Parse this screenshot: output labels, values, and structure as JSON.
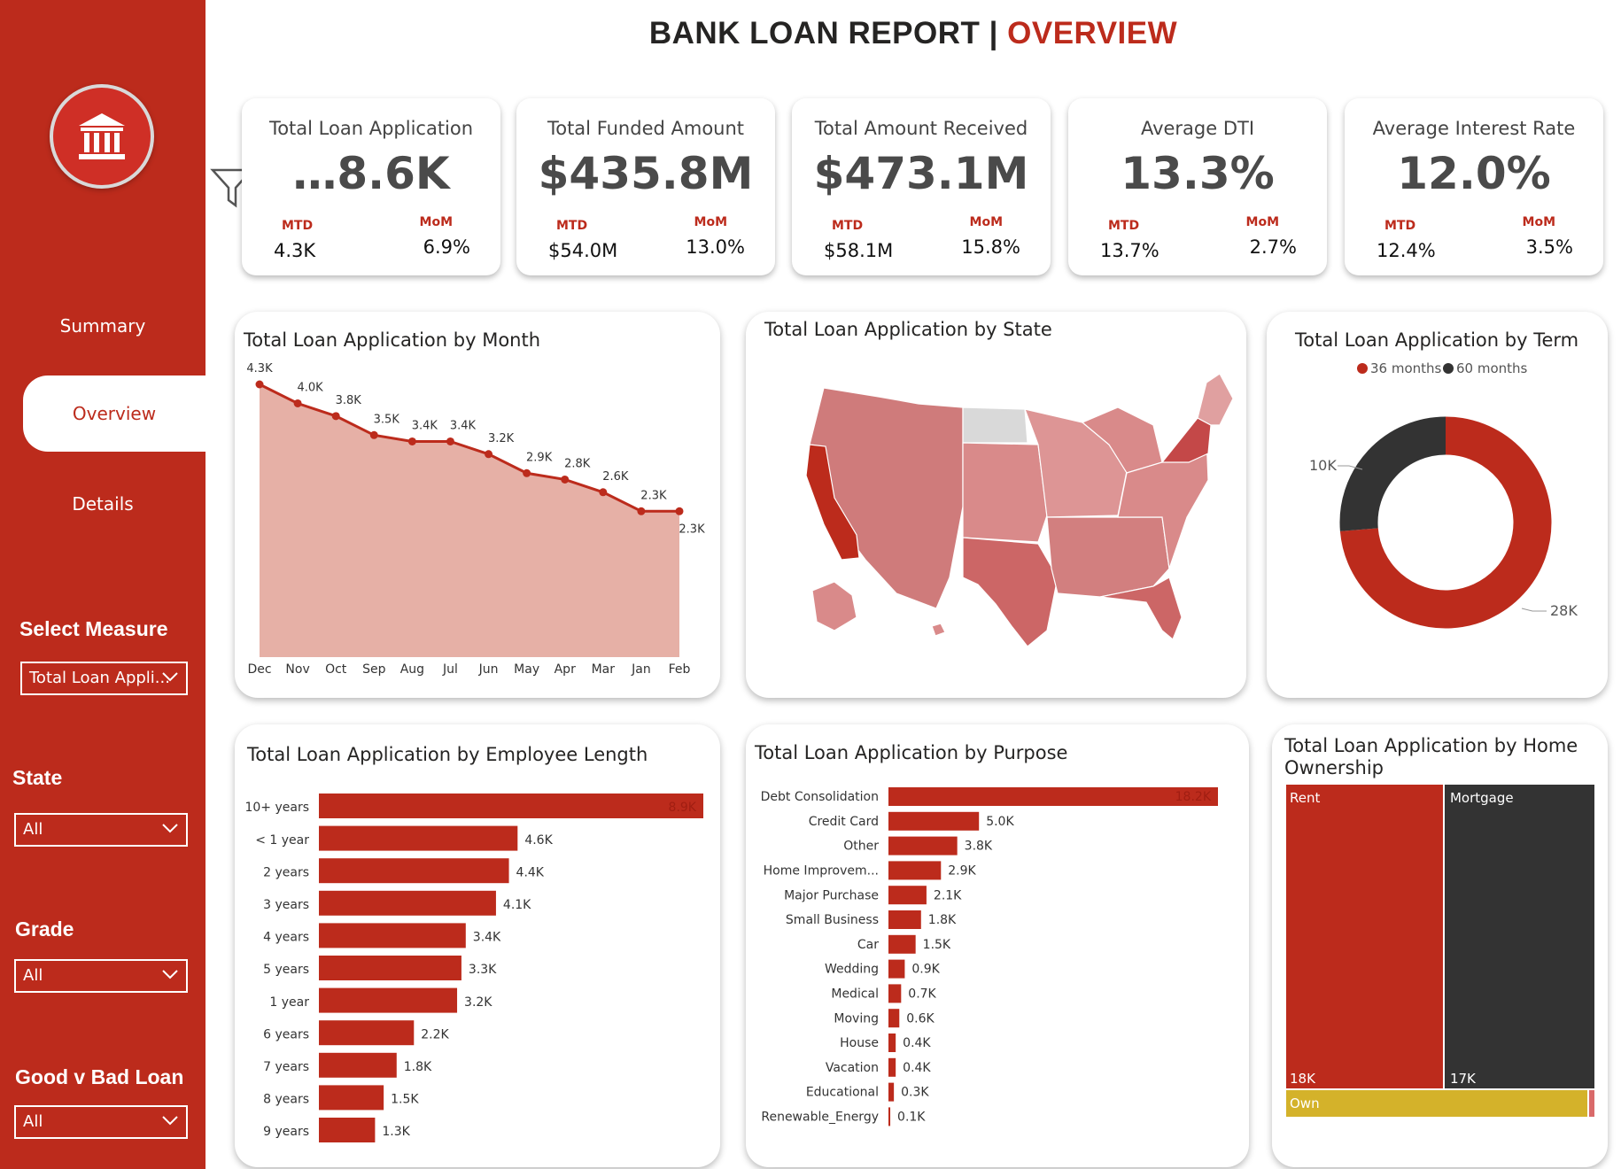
{
  "report": {
    "title_main": "BANK LOAN REPORT |",
    "title_accent": "OVERVIEW"
  },
  "nav": [
    {
      "label": "Summary"
    },
    {
      "label": "Overview"
    },
    {
      "label": "Details"
    }
  ],
  "filters": {
    "measure": {
      "label": "Select Measure",
      "value": "Total Loan Appli..."
    },
    "state": {
      "label": "State",
      "value": "All"
    },
    "grade": {
      "label": "Grade",
      "value": "All"
    },
    "loan": {
      "label": "Good v Bad Loan",
      "value": "All"
    }
  },
  "kpis": [
    {
      "title": "Total Loan Application",
      "value": "…8.6K",
      "mtd_label": "MTD",
      "mtd": "4.3K",
      "mom_label": "MoM",
      "mom": "6.9%"
    },
    {
      "title": "Total Funded Amount",
      "value": "$435.8M",
      "mtd_label": "MTD",
      "mtd": "$54.0M",
      "mom_label": "MoM",
      "mom": "13.0%"
    },
    {
      "title": "Total Amount Received",
      "value": "$473.1M",
      "mtd_label": "MTD",
      "mtd": "$58.1M",
      "mom_label": "MoM",
      "mom": "15.8%"
    },
    {
      "title": "Average DTI",
      "value": "13.3%",
      "mtd_label": "MTD",
      "mtd": "13.7%",
      "mom_label": "MoM",
      "mom": "2.7%"
    },
    {
      "title": "Average Interest Rate",
      "value": "12.0%",
      "mtd_label": "MTD",
      "mtd": "12.4%",
      "mom_label": "MoM",
      "mom": "3.5%"
    }
  ],
  "panels": {
    "month": "Total Loan Application by Month",
    "state": "Total Loan Application by State",
    "term": "Total Loan Application by Term",
    "emp": "Total Loan Application by Employee Length",
    "purpose": "Total Loan Application by Purpose",
    "home": "Total Loan Application by Home Ownership"
  },
  "colors": {
    "accent": "#bc2b1c",
    "dark": "#333333",
    "area": "#e6b0a6",
    "own": "#d4b22a",
    "map": "#d98a8a"
  },
  "chart_data": [
    {
      "type": "area",
      "title": "Total Loan Application by Month",
      "categories": [
        "Dec",
        "Nov",
        "Oct",
        "Sep",
        "Aug",
        "Jul",
        "Jun",
        "May",
        "Apr",
        "Mar",
        "Jan",
        "Feb"
      ],
      "values": [
        4.3,
        4.0,
        3.8,
        3.5,
        3.4,
        3.4,
        3.2,
        2.9,
        2.8,
        2.6,
        2.3,
        2.3
      ],
      "labels": [
        "4.3K",
        "4.0K",
        "3.8K",
        "3.5K",
        "3.4K",
        "3.4K",
        "3.2K",
        "2.9K",
        "2.8K",
        "2.6K",
        "2.3K",
        "2.3K"
      ]
    },
    {
      "type": "pie",
      "title": "Total Loan Application by Term",
      "legend": [
        "36 months",
        "60 months"
      ],
      "values": [
        28,
        10
      ],
      "labels": [
        "28K",
        "10K"
      ]
    },
    {
      "type": "bar",
      "title": "Total Loan Application by Employee Length",
      "categories": [
        "10+ years",
        "< 1 year",
        "2 years",
        "3 years",
        "4 years",
        "5 years",
        "1 year",
        "6 years",
        "7 years",
        "8 years",
        "9 years"
      ],
      "values": [
        8.9,
        4.6,
        4.4,
        4.1,
        3.4,
        3.3,
        3.2,
        2.2,
        1.8,
        1.5,
        1.3
      ],
      "labels": [
        "8.9K",
        "4.6K",
        "4.4K",
        "4.1K",
        "3.4K",
        "3.3K",
        "3.2K",
        "2.2K",
        "1.8K",
        "1.5K",
        "1.3K"
      ]
    },
    {
      "type": "bar",
      "title": "Total Loan Application by Purpose",
      "categories": [
        "Debt Consolidation",
        "Credit Card",
        "Other",
        "Home Improvem...",
        "Major Purchase",
        "Small Business",
        "Car",
        "Wedding",
        "Medical",
        "Moving",
        "House",
        "Vacation",
        "Educational",
        "Renewable_Energy"
      ],
      "values": [
        18.2,
        5.0,
        3.8,
        2.9,
        2.1,
        1.8,
        1.5,
        0.9,
        0.7,
        0.6,
        0.4,
        0.4,
        0.3,
        0.1
      ],
      "labels": [
        "18.2K",
        "5.0K",
        "3.8K",
        "2.9K",
        "2.1K",
        "1.8K",
        "1.5K",
        "0.9K",
        "0.7K",
        "0.6K",
        "0.4K",
        "0.4K",
        "0.3K",
        "0.1K"
      ]
    },
    {
      "type": "heatmap",
      "title": "Total Loan Application by Home Ownership",
      "categories": [
        "Rent",
        "Mortgage",
        "Own"
      ],
      "values": [
        18,
        17,
        3
      ],
      "labels": [
        "18K",
        "17K",
        ""
      ]
    }
  ]
}
